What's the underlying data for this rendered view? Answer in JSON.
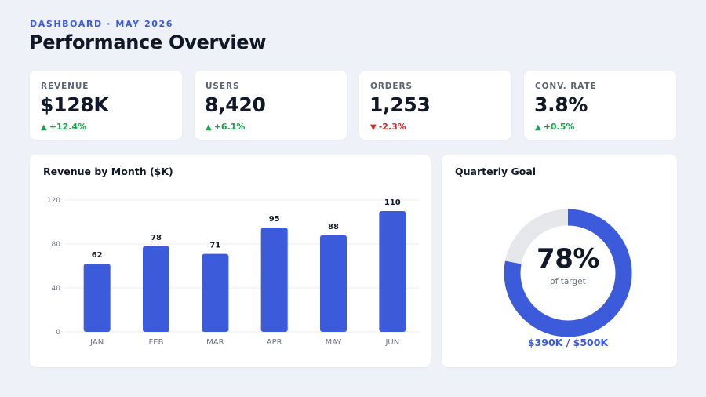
{
  "header": {
    "eyebrow": "DASHBOARD · MAY 2026",
    "title": "Performance Overview"
  },
  "kpis": [
    {
      "label": "REVENUE",
      "value": "$128K",
      "delta": "+12.4%",
      "direction": "up",
      "arrow": "▲"
    },
    {
      "label": "USERS",
      "value": "8,420",
      "delta": "+6.1%",
      "direction": "up",
      "arrow": "▲"
    },
    {
      "label": "ORDERS",
      "value": "1,253",
      "delta": "-2.3%",
      "direction": "down",
      "arrow": "▼"
    },
    {
      "label": "CONV. RATE",
      "value": "3.8%",
      "delta": "+0.5%",
      "direction": "up",
      "arrow": "▲"
    }
  ],
  "colors": {
    "accent": "#3b5bdb",
    "positive": "#16a34a",
    "negative": "#dc2626",
    "track": "#e5e7eb"
  },
  "chart_data": {
    "type": "bar",
    "title": "Revenue by Month ($K)",
    "categories": [
      "JAN",
      "FEB",
      "MAR",
      "APR",
      "MAY",
      "JUN"
    ],
    "values": [
      62,
      78,
      71,
      95,
      88,
      110
    ],
    "yticks": [
      0,
      40,
      80,
      120
    ],
    "ylim": [
      0,
      120
    ],
    "grid": true,
    "xlabel": "",
    "ylabel": ""
  },
  "goal": {
    "title": "Quarterly Goal",
    "percent_label": "78%",
    "percent_value": 78,
    "subtitle": "of target",
    "amount": "$390K / $500K"
  }
}
